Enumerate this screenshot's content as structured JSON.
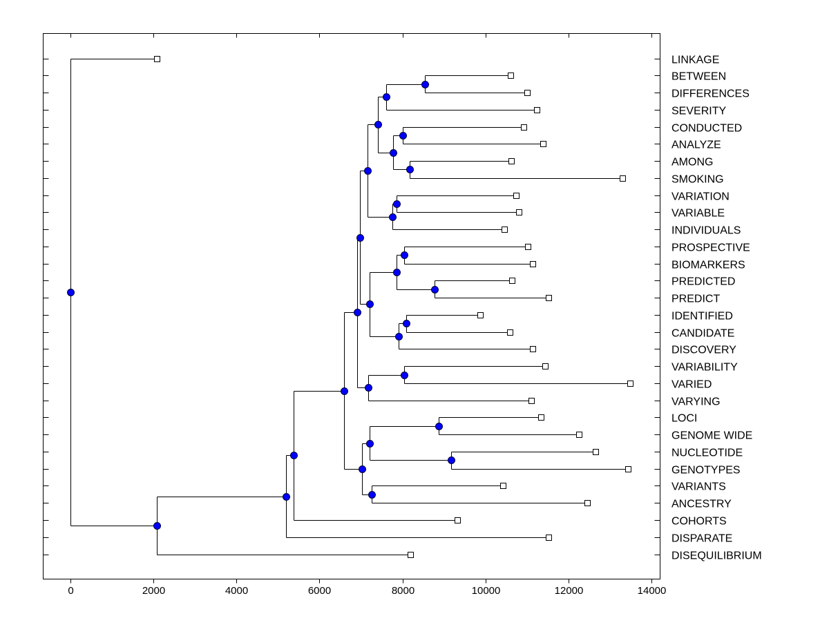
{
  "chart_data": {
    "type": "dendrogram",
    "title": "",
    "xlabel": "",
    "ylabel": "",
    "xlim": [
      -650,
      14200
    ],
    "xticks": [
      0,
      2000,
      4000,
      6000,
      8000,
      10000,
      12000,
      14000
    ],
    "xtick_labels": [
      "0",
      "2000",
      "4000",
      "6000",
      "8000",
      "10000",
      "12000",
      "14000"
    ],
    "grid": false,
    "colors": {
      "node": "#0000ff",
      "leaf": "#ffffff",
      "line": "#000000"
    },
    "tree": {
      "h": 0,
      "children": [
        {
          "label": "LINKAGE",
          "h": 2090
        },
        {
          "h": 2090,
          "children": [
            {
              "h": 5190,
              "children": [
                {
                  "h": 5370,
                  "children": [
                    {
                      "h": 6600,
                      "children": [
                        {
                          "h": 6900,
                          "children": [
                            {
                              "h": 6970,
                              "children": [
                                {
                                  "h": 7150,
                                  "children": [
                                    {
                                      "h": 7400,
                                      "children": [
                                        {
                                          "h": 7600,
                                          "children": [
                                            {
                                              "h": 8530,
                                              "children": [
                                                {
                                                  "label": "BETWEEN",
                                                  "h": 10600
                                                },
                                                {
                                                  "label": "DIFFERENCES",
                                                  "h": 11000
                                                }
                                              ]
                                            },
                                            {
                                              "label": "SEVERITY",
                                              "h": 11230
                                            }
                                          ]
                                        },
                                        {
                                          "h": 7780,
                                          "children": [
                                            {
                                              "h": 8000,
                                              "children": [
                                                {
                                                  "label": "CONDUCTED",
                                                  "h": 10910
                                                },
                                                {
                                                  "label": "ANALYZE",
                                                  "h": 11380
                                                }
                                              ]
                                            },
                                            {
                                              "h": 8180,
                                              "children": [
                                                {
                                                  "label": "AMONG",
                                                  "h": 10620
                                                },
                                                {
                                                  "label": "SMOKING",
                                                  "h": 13300
                                                }
                                              ]
                                            }
                                          ]
                                        }
                                      ]
                                    },
                                    {
                                      "h": 7750,
                                      "children": [
                                        {
                                          "h": 7850,
                                          "children": [
                                            {
                                              "label": "VARIATION",
                                              "h": 10730
                                            },
                                            {
                                              "label": "VARIABLE",
                                              "h": 10800
                                            }
                                          ]
                                        },
                                        {
                                          "label": "INDIVIDUALS",
                                          "h": 10450
                                        }
                                      ]
                                    }
                                  ]
                                },
                                {
                                  "h": 7200,
                                  "children": [
                                    {
                                      "h": 7850,
                                      "children": [
                                        {
                                          "h": 8040,
                                          "children": [
                                            {
                                              "label": "PROSPECTIVE",
                                              "h": 11010
                                            },
                                            {
                                              "label": "BIOMARKERS",
                                              "h": 11130
                                            }
                                          ]
                                        },
                                        {
                                          "h": 8770,
                                          "children": [
                                            {
                                              "label": "PREDICTED",
                                              "h": 10630
                                            },
                                            {
                                              "label": "PREDICT",
                                              "h": 11510
                                            }
                                          ]
                                        }
                                      ]
                                    },
                                    {
                                      "h": 7900,
                                      "children": [
                                        {
                                          "h": 8090,
                                          "children": [
                                            {
                                              "label": "IDENTIFIED",
                                              "h": 9870
                                            },
                                            {
                                              "label": "CANDIDATE",
                                              "h": 10580
                                            }
                                          ]
                                        },
                                        {
                                          "label": "DISCOVERY",
                                          "h": 11130
                                        }
                                      ]
                                    }
                                  ]
                                }
                              ]
                            },
                            {
                              "h": 7180,
                              "children": [
                                {
                                  "h": 8040,
                                  "children": [
                                    {
                                      "label": "VARIABILITY",
                                      "h": 11430
                                    },
                                    {
                                      "label": "VARIED",
                                      "h": 13480
                                    }
                                  ]
                                },
                                {
                                  "label": "VARYING",
                                  "h": 11100
                                }
                              ]
                            }
                          ]
                        },
                        {
                          "h": 7020,
                          "children": [
                            {
                              "h": 7200,
                              "children": [
                                {
                                  "h": 8870,
                                  "children": [
                                    {
                                      "label": "LOCI",
                                      "h": 11330
                                    },
                                    {
                                      "label": "GENOME WIDE",
                                      "h": 12240
                                    }
                                  ]
                                },
                                {
                                  "h": 9170,
                                  "children": [
                                    {
                                      "label": "NUCLEOTIDE",
                                      "h": 12640
                                    },
                                    {
                                      "label": "GENOTYPES",
                                      "h": 13420
                                    }
                                  ]
                                }
                              ]
                            },
                            {
                              "h": 7250,
                              "children": [
                                {
                                  "label": "VARIANTS",
                                  "h": 10420
                                },
                                {
                                  "label": "ANCESTRY",
                                  "h": 12440
                                }
                              ]
                            }
                          ]
                        }
                      ]
                    },
                    {
                      "label": "COHORTS",
                      "h": 9320
                    }
                  ]
                },
                {
                  "label": "DISPARATE",
                  "h": 11510
                }
              ]
            },
            {
              "label": "DISEQUILIBRIUM",
              "h": 8190
            }
          ]
        }
      ]
    }
  }
}
